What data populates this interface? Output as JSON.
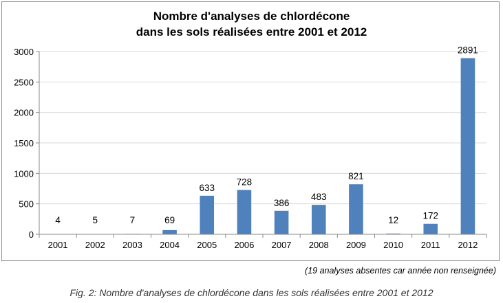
{
  "chart_data": {
    "type": "bar",
    "title_lines": [
      "Nombre d'analyses de chlordécone",
      "dans les sols réalisées entre 2001 et 2012"
    ],
    "categories": [
      "2001",
      "2002",
      "2003",
      "2004",
      "2005",
      "2006",
      "2007",
      "2008",
      "2009",
      "2010",
      "2011",
      "2012"
    ],
    "values": [
      4,
      5,
      7,
      69,
      633,
      728,
      386,
      483,
      821,
      12,
      172,
      2891
    ],
    "ylim": [
      0,
      3000
    ],
    "yticks": [
      0,
      500,
      1000,
      1500,
      2000,
      2500,
      3000
    ],
    "grid": true,
    "bar_color": "#4f81bd",
    "grid_color": "#d9d9d9",
    "legend": "none"
  },
  "note": "(19 analyses absentes car année non renseignée)",
  "caption": "Fig. 2: Nombre d'analyses de chlordécone dans les sols réalisées entre 2001 et 2012"
}
